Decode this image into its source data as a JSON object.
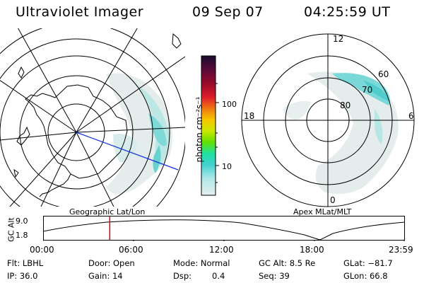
{
  "header": {
    "title": "Ultraviolet Imager",
    "date": "09 Sep 07",
    "time": "04:25:59 UT"
  },
  "left_map": {
    "caption": "Geographic Lat/Lon"
  },
  "right_map": {
    "caption": "Apex MLat/MLT",
    "mlt_labels": [
      "12",
      "18",
      "6",
      "0"
    ],
    "mlat_labels": [
      "60",
      "70",
      "80"
    ]
  },
  "colorbar": {
    "label": "photon cm⁻²s⁻¹",
    "ticks": [
      "100",
      "10"
    ],
    "scale": "log",
    "colors": [
      "#1a0a2e",
      "#5a0a3a",
      "#9a0a2a",
      "#e0202a",
      "#f07a10",
      "#f8c800",
      "#c8e800",
      "#60e000",
      "#20e0a0",
      "#40d0d0",
      "#b0e8e8",
      "#e6eeee"
    ]
  },
  "timeline": {
    "ylabel": "GC Alt",
    "y_ticks": [
      "9.0",
      "1.8"
    ],
    "x_ticks": [
      "00:00",
      "06:00",
      "12:00",
      "18:00",
      "23:59"
    ],
    "current_time_hours": 4.43,
    "marker_color": "#e00000"
  },
  "info": {
    "filter": "Flt: LBHL",
    "door": "Door: Open",
    "mode": "Mode: Normal",
    "gc_alt": "GC Alt: 8.5 Re",
    "glat": "GLat: −81.7",
    "ip": "IP: 36.0",
    "gain": "Gain: 14",
    "dsp_label": "Dsp:",
    "dsp_value": "0.4",
    "seq": "Seq: 39",
    "glon": "GLon:  66.8"
  }
}
